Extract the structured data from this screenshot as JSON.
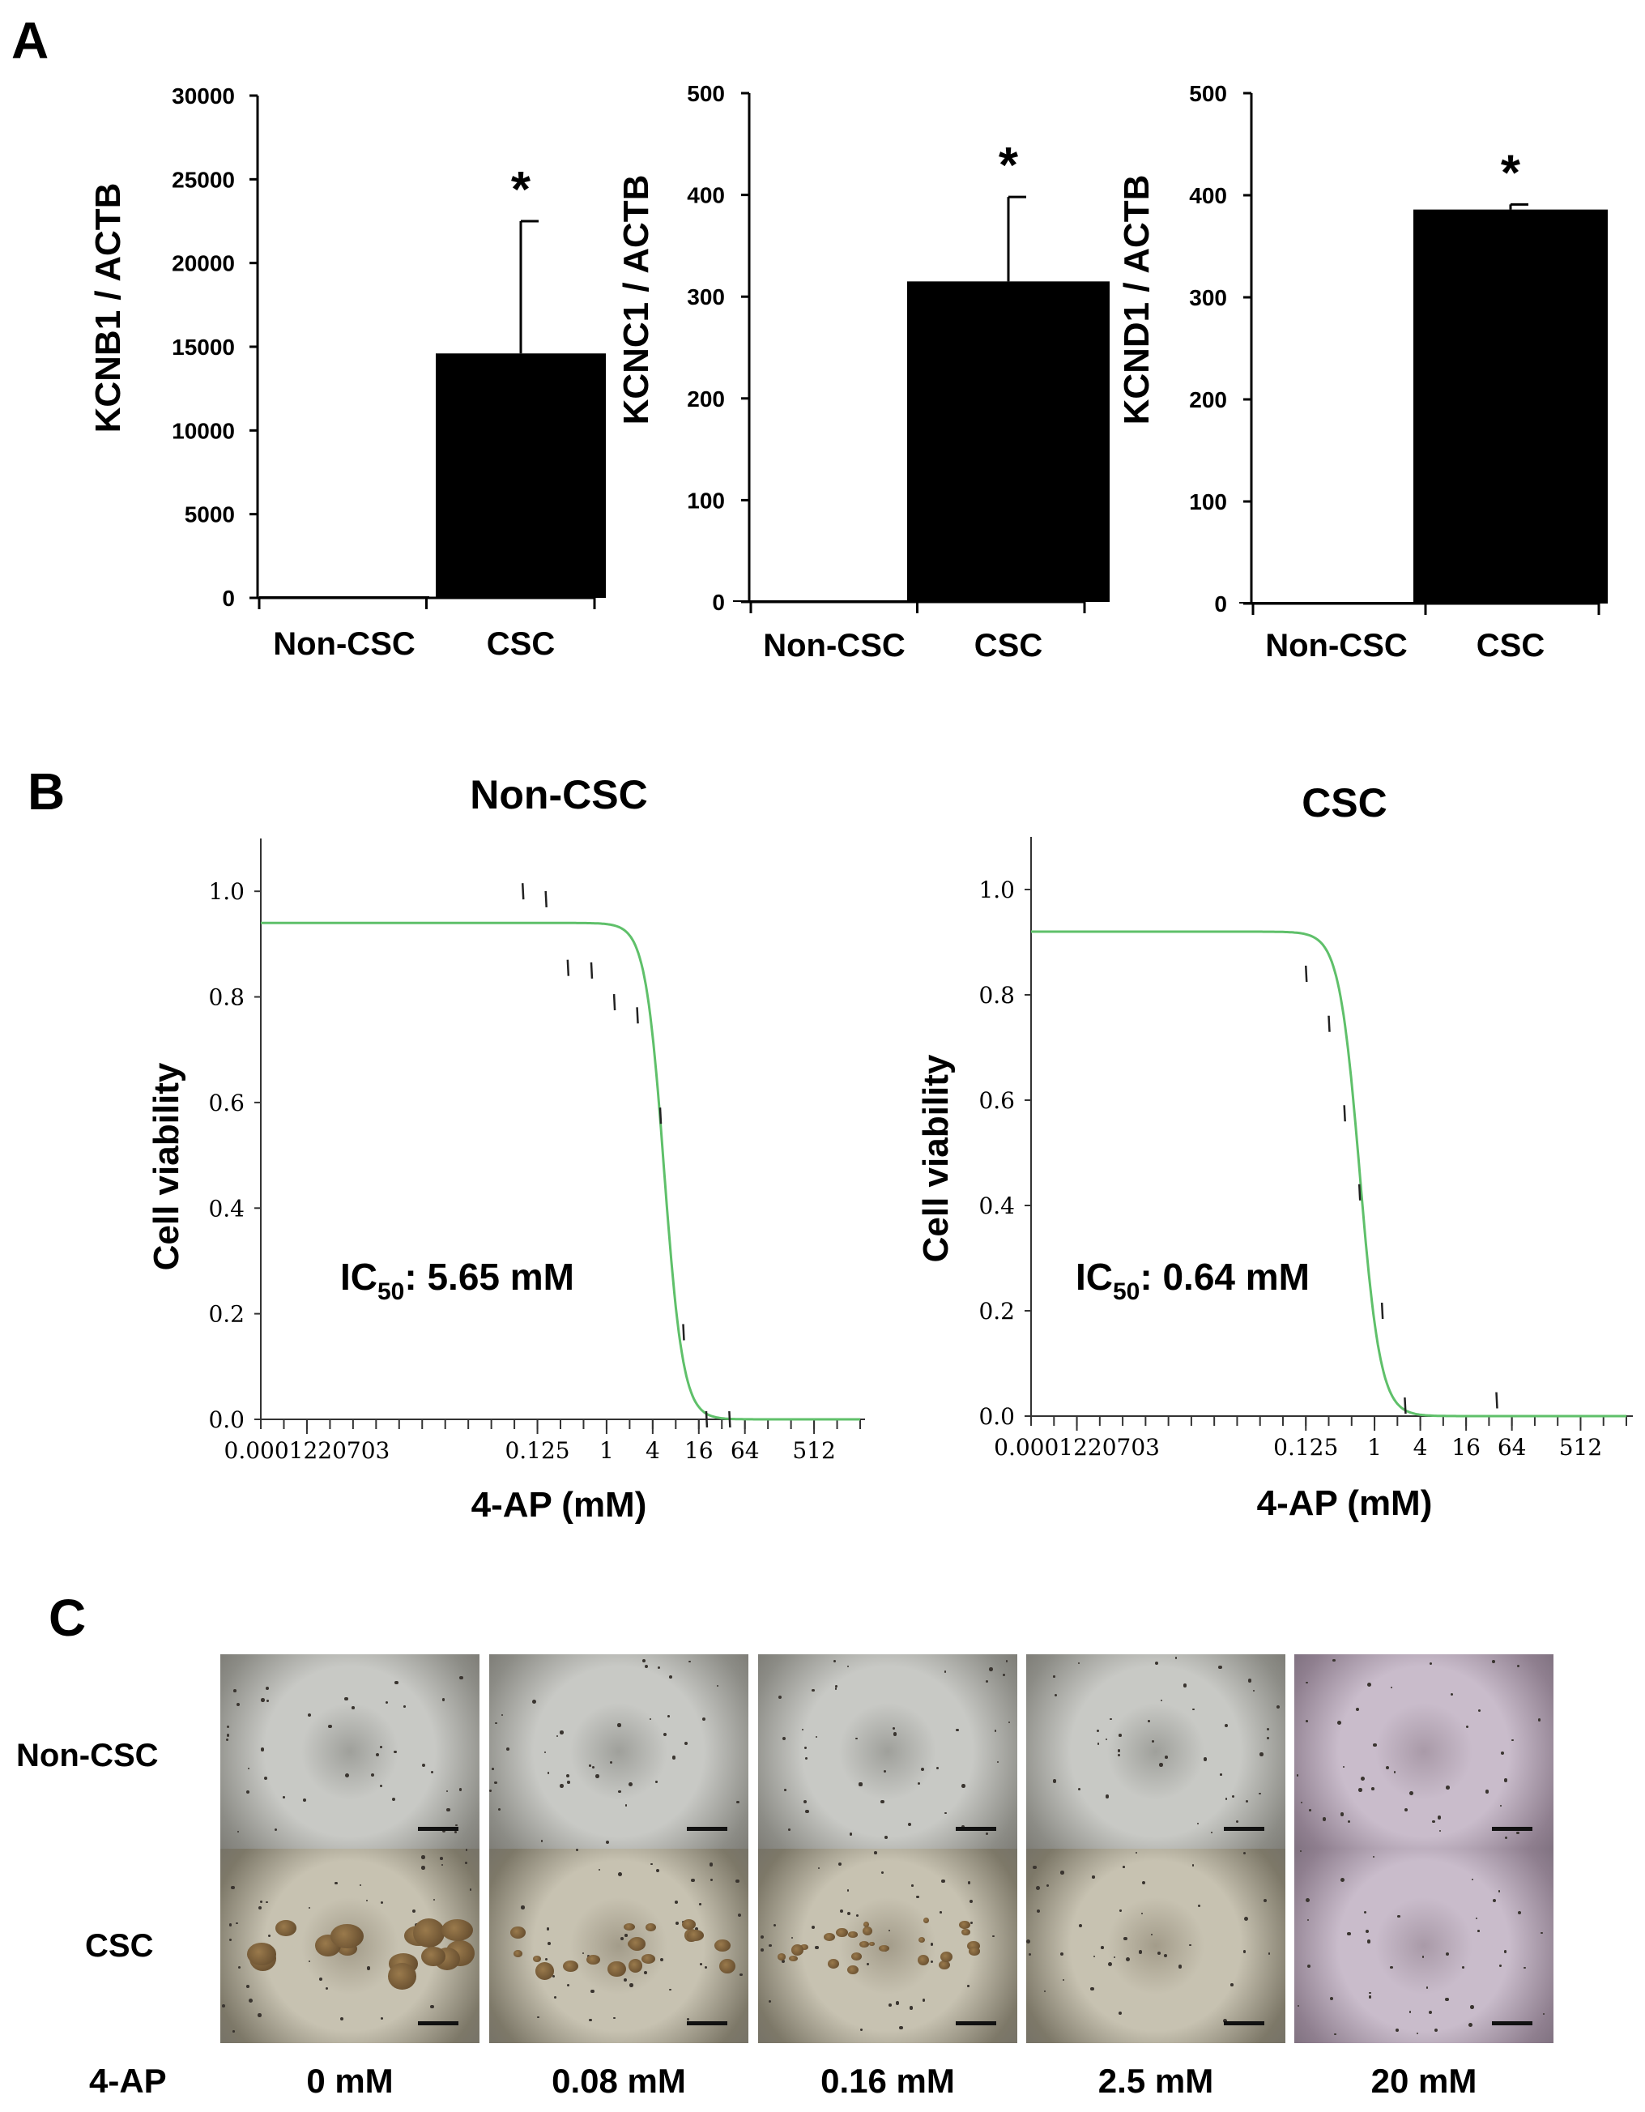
{
  "panels": {
    "a": "A",
    "b": "B",
    "c": "C"
  },
  "chart_data": [
    {
      "type": "bar",
      "panel": "A",
      "categories": [
        "Non-CSC",
        "CSC"
      ],
      "values": [
        0,
        14600
      ],
      "errors": [
        0,
        7900
      ],
      "significance": [
        "",
        "*"
      ],
      "ylabel": "KCNB1 / ACTB",
      "ylim": [
        0,
        30000
      ],
      "yticks": [
        0,
        5000,
        10000,
        15000,
        20000,
        25000,
        30000
      ],
      "ytick_labels": [
        "0",
        "5000",
        "10000",
        "15000",
        "20000",
        "25000",
        "30000"
      ]
    },
    {
      "type": "bar",
      "panel": "A",
      "categories": [
        "Non-CSC",
        "CSC"
      ],
      "values": [
        0,
        315
      ],
      "errors": [
        0,
        83
      ],
      "significance": [
        "",
        "*"
      ],
      "ylabel": "KCNC1 / ACTB",
      "ylim": [
        0,
        500
      ],
      "yticks": [
        0,
        100,
        200,
        300,
        400,
        500
      ],
      "ytick_labels": [
        "0",
        "100",
        "200",
        "300",
        "400",
        "500"
      ]
    },
    {
      "type": "bar",
      "panel": "A",
      "categories": [
        "Non-CSC",
        "CSC"
      ],
      "values": [
        0,
        386
      ],
      "errors": [
        0,
        5
      ],
      "significance": [
        "",
        "*"
      ],
      "ylabel": "KCND1 / ACTB",
      "ylim": [
        0,
        500
      ],
      "yticks": [
        0,
        100,
        200,
        300,
        400,
        500
      ],
      "ytick_labels": [
        "0",
        "100",
        "200",
        "300",
        "400",
        "500"
      ]
    },
    {
      "type": "line",
      "panel": "B",
      "title": "Non-CSC",
      "xlabel": "4-AP (mM)",
      "ylabel": "Cell viability",
      "xscale": "log2",
      "xlim": [
        3.05e-05,
        2048
      ],
      "ylim": [
        0,
        1.1
      ],
      "xtick_labels": [
        "0.0001220703",
        "0.125",
        "1",
        "4",
        "16",
        "64",
        "512"
      ],
      "xtick_values": [
        0.0001220703,
        0.125,
        1,
        4,
        16,
        64,
        512
      ],
      "ytick_labels": [
        "0.0",
        "0.2",
        "0.4",
        "0.6",
        "0.8",
        "1.0"
      ],
      "ytick_values": [
        0,
        0.2,
        0.4,
        0.6,
        0.8,
        1.0
      ],
      "annotation": {
        "prefix": "IC",
        "sub": "50",
        "suffix": ": 5.65 mM"
      },
      "fit": {
        "top": 0.94,
        "ic50": 5.65,
        "hill": 2.2
      },
      "points": [
        {
          "x": 0.08,
          "y": 1.0
        },
        {
          "x": 0.16,
          "y": 0.985
        },
        {
          "x": 0.31,
          "y": 0.855
        },
        {
          "x": 0.63,
          "y": 0.85
        },
        {
          "x": 1.25,
          "y": 0.79
        },
        {
          "x": 2.5,
          "y": 0.765
        },
        {
          "x": 5.0,
          "y": 0.575
        },
        {
          "x": 10.0,
          "y": 0.165
        },
        {
          "x": 20.0,
          "y": 0.0
        },
        {
          "x": 40.0,
          "y": 0.0
        }
      ]
    },
    {
      "type": "line",
      "panel": "B",
      "title": "CSC",
      "xlabel": "4-AP (mM)",
      "ylabel": "Cell viability",
      "xscale": "log2",
      "xlim": [
        3.05e-05,
        2048
      ],
      "ylim": [
        0,
        1.1
      ],
      "xtick_labels": [
        "0.0001220703",
        "0.125",
        "1",
        "4",
        "16",
        "64",
        "512"
      ],
      "xtick_values": [
        0.0001220703,
        0.125,
        1,
        4,
        16,
        64,
        512
      ],
      "ytick_labels": [
        "0.0",
        "0.2",
        "0.4",
        "0.6",
        "0.8",
        "1.0"
      ],
      "ytick_values": [
        0,
        0.2,
        0.4,
        0.6,
        0.8,
        1.0
      ],
      "annotation": {
        "prefix": "IC",
        "sub": "50",
        "suffix": ": 0.64 mM"
      },
      "fit": {
        "top": 0.92,
        "ic50": 0.64,
        "hill": 2.0
      },
      "points": [
        {
          "x": 0.125,
          "y": 0.84
        },
        {
          "x": 0.25,
          "y": 0.745
        },
        {
          "x": 0.4,
          "y": 0.575
        },
        {
          "x": 0.63,
          "y": 0.425
        },
        {
          "x": 1.25,
          "y": 0.2
        },
        {
          "x": 2.5,
          "y": 0.02
        },
        {
          "x": 40.0,
          "y": 0.03
        }
      ]
    }
  ],
  "panel_c": {
    "rows": [
      "Non-CSC",
      "CSC"
    ],
    "treatment_label": "4-AP",
    "concentrations": [
      "0 mM",
      "0.08 mM",
      "0.16 mM",
      "2.5 mM",
      "20 mM"
    ]
  }
}
